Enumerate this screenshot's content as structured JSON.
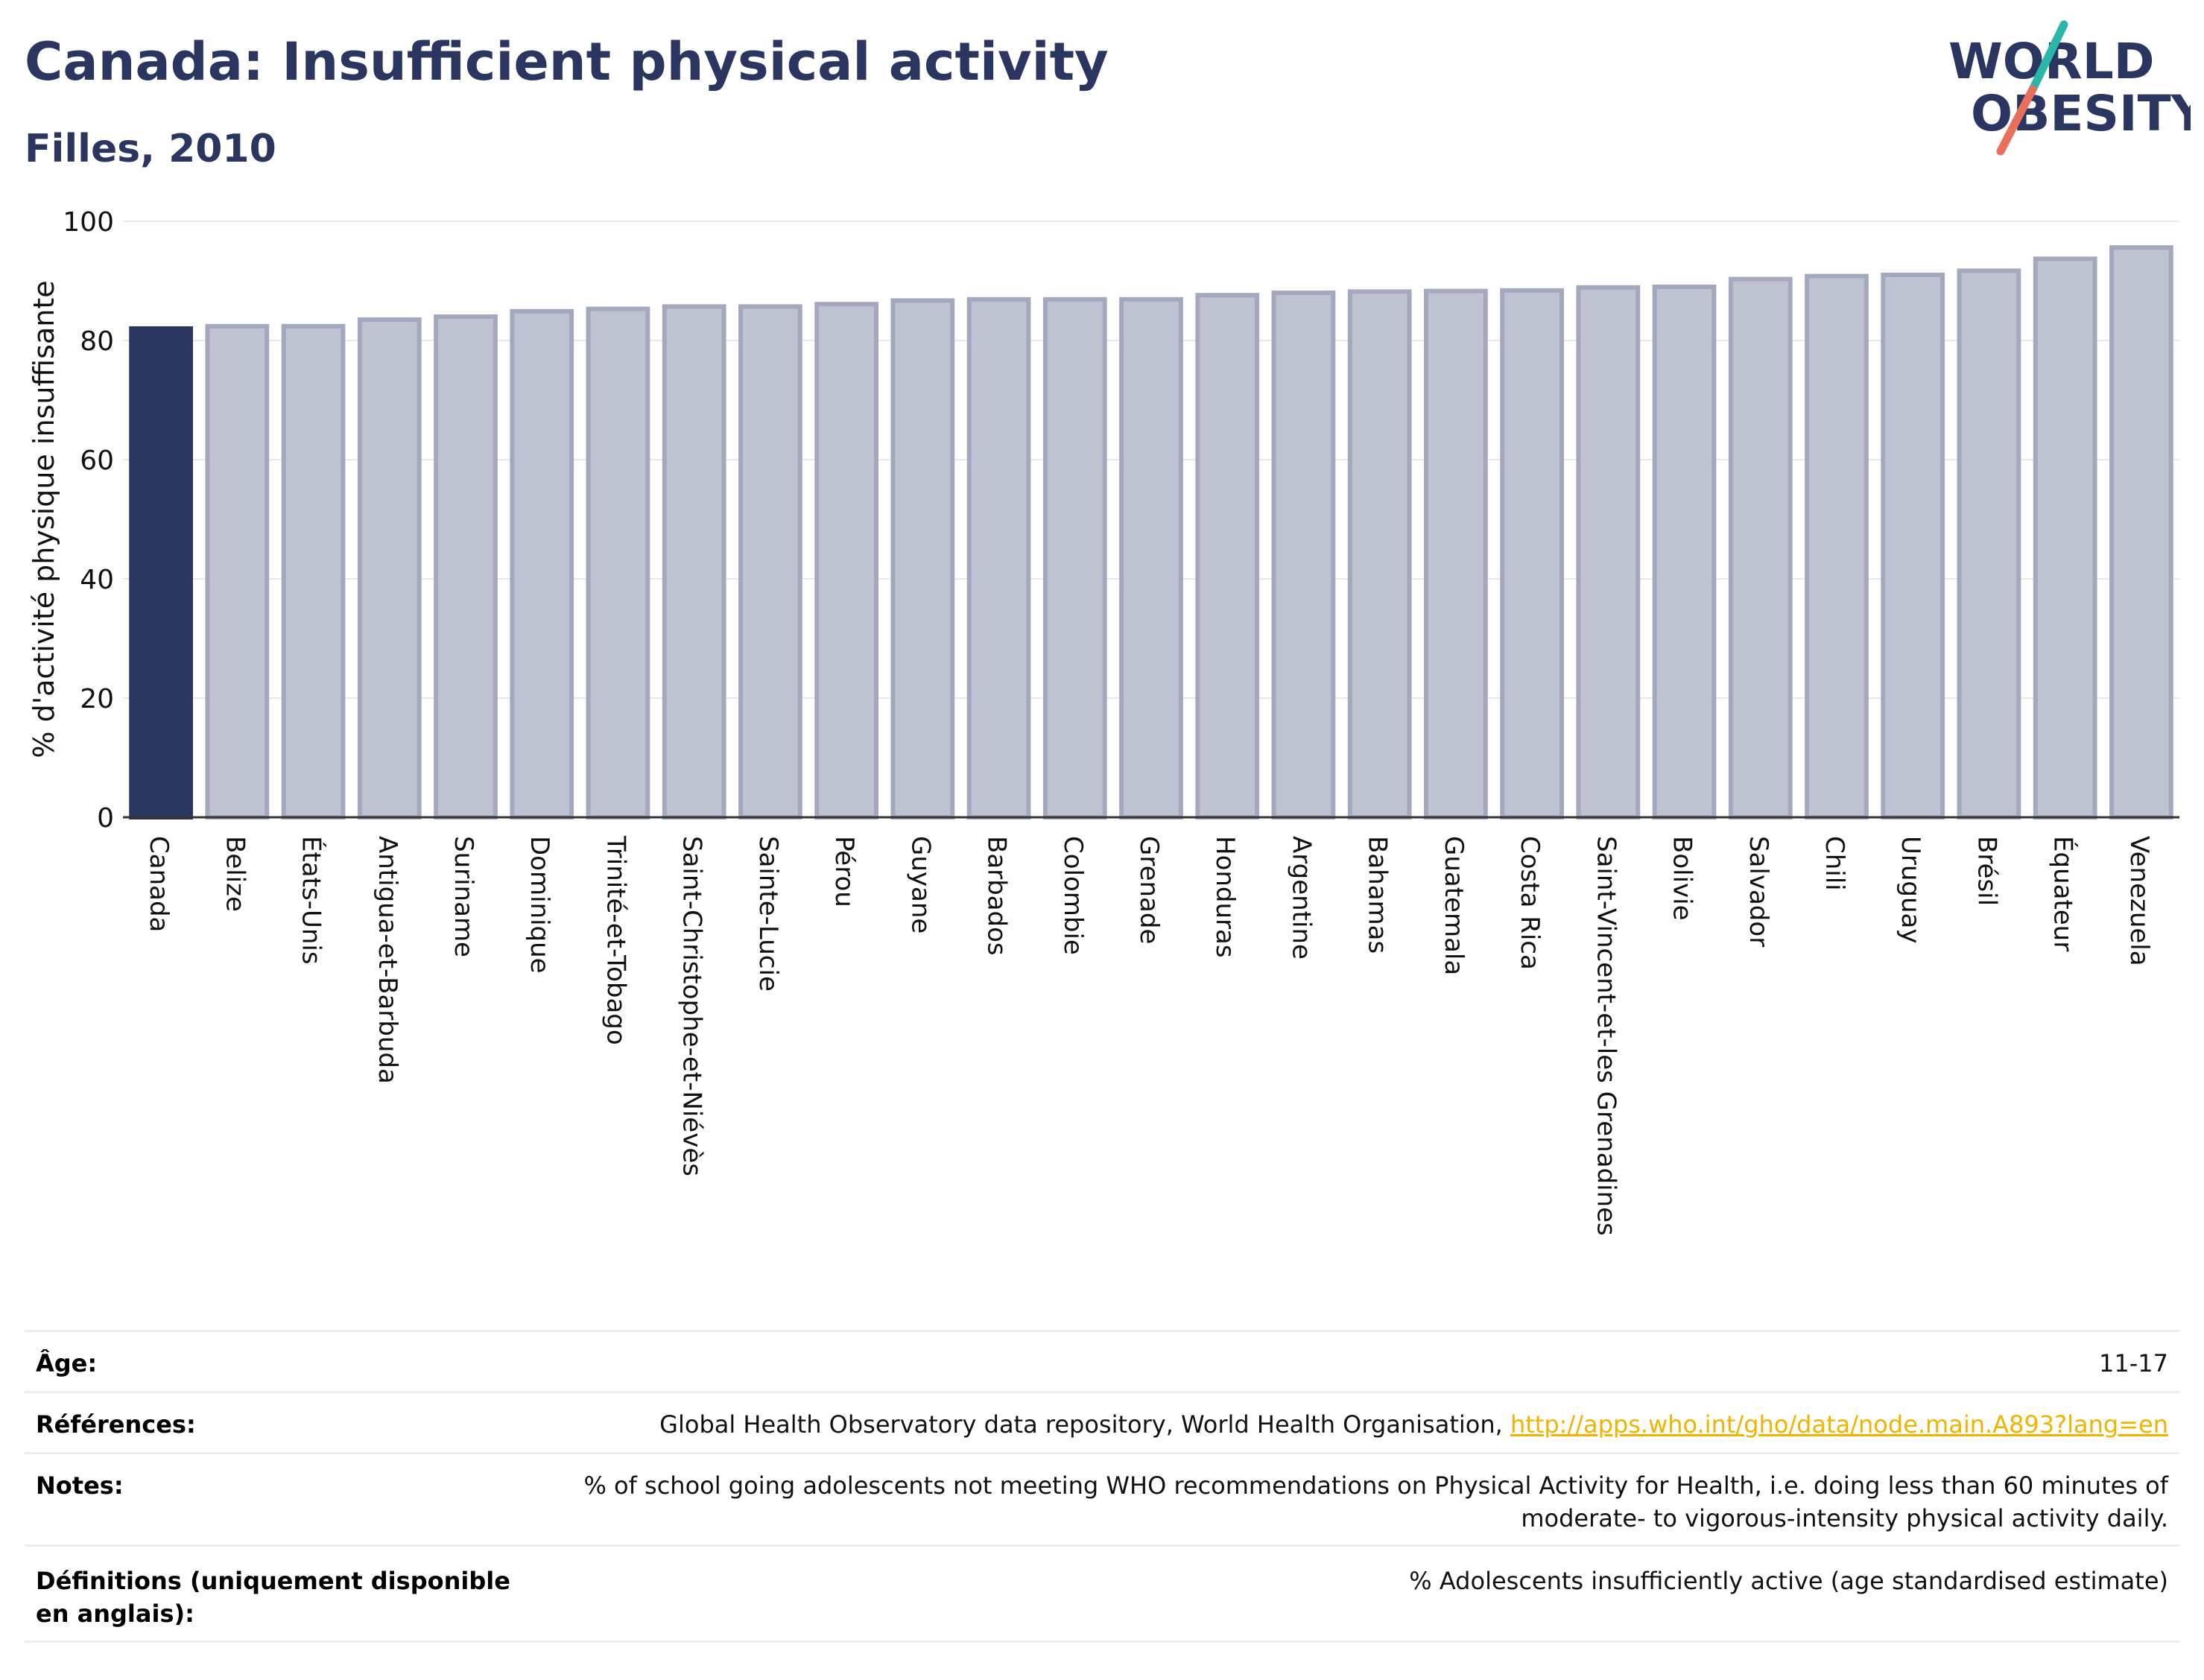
{
  "title": "Canada: Insufficient physical activity",
  "subtitle": "Filles, 2010",
  "logo": {
    "line1": "WORLD",
    "line2": "OBESITY",
    "accent_colors": [
      "#2ab7a9",
      "#e8705a"
    ]
  },
  "colors": {
    "highlight": "#2a3560",
    "bar_fill": "#bfc3d1",
    "bar_stroke": "#a3a8be",
    "title": "#2a3560",
    "link": "#f0b400"
  },
  "chart_data": {
    "type": "bar",
    "title": "",
    "ylabel": "% d'activité physique insuffisante",
    "xlabel": "",
    "ylim": [
      0,
      100
    ],
    "yticks": [
      0,
      20,
      40,
      60,
      80,
      100
    ],
    "grid": true,
    "highlight_category": "Canada",
    "categories": [
      "Canada",
      "Belize",
      "États-Unis",
      "Antigua-et-Barbuda",
      "Suriname",
      "Dominique",
      "Trinité-et-Tobago",
      "Saint-Christophe-et-Niévès",
      "Sainte-Lucie",
      "Pérou",
      "Guyane",
      "Barbados",
      "Colombie",
      "Grenade",
      "Honduras",
      "Argentine",
      "Bahamas",
      "Guatemala",
      "Costa Rica",
      "Saint-Vincent-et-les Grenadines",
      "Bolivie",
      "Salvador",
      "Chili",
      "Uruguay",
      "Brésil",
      "Équateur",
      "Venezuela"
    ],
    "values": [
      82.0,
      82.4,
      82.4,
      83.5,
      84.0,
      84.9,
      85.3,
      85.7,
      85.7,
      86.1,
      86.7,
      86.9,
      86.9,
      86.9,
      87.6,
      88.0,
      88.2,
      88.3,
      88.4,
      88.9,
      89.0,
      90.3,
      90.8,
      91.0,
      91.7,
      93.7,
      95.6
    ]
  },
  "info": {
    "age_label": "Âge:",
    "age_value": "11-17",
    "refs_label": "Références:",
    "refs_text": "Global Health Observatory data repository, World Health Organisation,",
    "refs_link": "http://apps.who.int/gho/data/node.main.A893?lang=en",
    "notes_label": "Notes:",
    "notes_value": "% of school going adolescents not meeting WHO recommendations on Physical Activity for Health, i.e. doing less than 60 minutes of moderate- to vigorous-intensity physical activity daily.",
    "defs_label": "Définitions (uniquement disponible en anglais):",
    "defs_value": "% Adolescents insufficiently active (age standardised estimate)"
  }
}
